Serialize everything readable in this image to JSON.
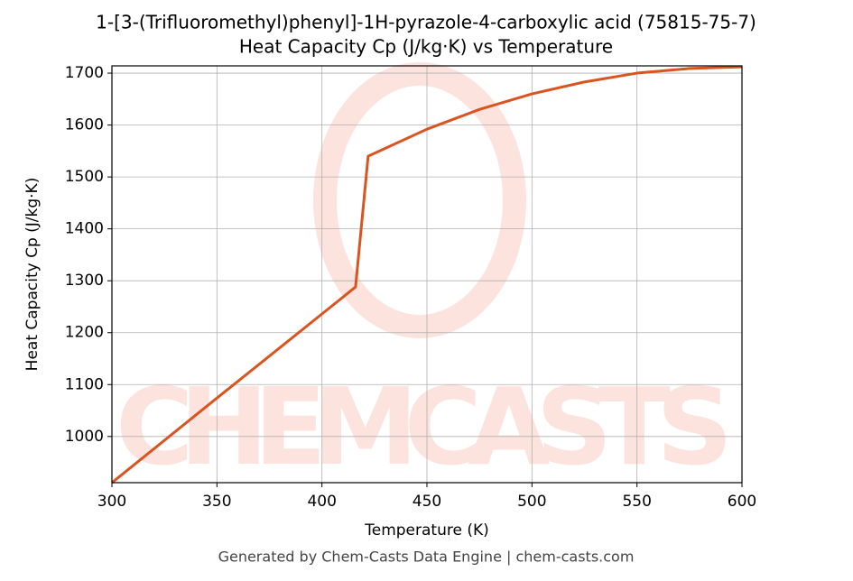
{
  "chart_data": {
    "type": "line",
    "title": "1-[3-(Trifluoromethyl)phenyl]-1H-pyrazole-4-carboxylic acid (75815-75-7)",
    "subtitle": "Heat Capacity Cp (J/kg·K) vs Temperature",
    "x_label": "Temperature (K)",
    "y_label": "Heat Capacity Cp (J/kg·K)",
    "watermark": "CHEMCASTS",
    "footer": "Generated by Chem-Casts Data Engine | chem-casts.com",
    "x": [
      300,
      350,
      400,
      416,
      422,
      450,
      475,
      500,
      525,
      550,
      575,
      600
    ],
    "series": [
      {
        "name": "Cp",
        "color": "#d95420",
        "values": [
          911,
          1074,
          1236,
          1288,
          1540,
          1592,
          1630,
          1660,
          1683,
          1700,
          1709,
          1712
        ]
      }
    ],
    "xlim": [
      300,
      600
    ],
    "xticks": [
      300,
      350,
      400,
      450,
      500,
      550,
      600
    ],
    "ylim": [
      911,
      1714
    ],
    "yticks": [
      1000,
      1100,
      1200,
      1300,
      1400,
      1500,
      1600,
      1700
    ],
    "grid": true
  }
}
